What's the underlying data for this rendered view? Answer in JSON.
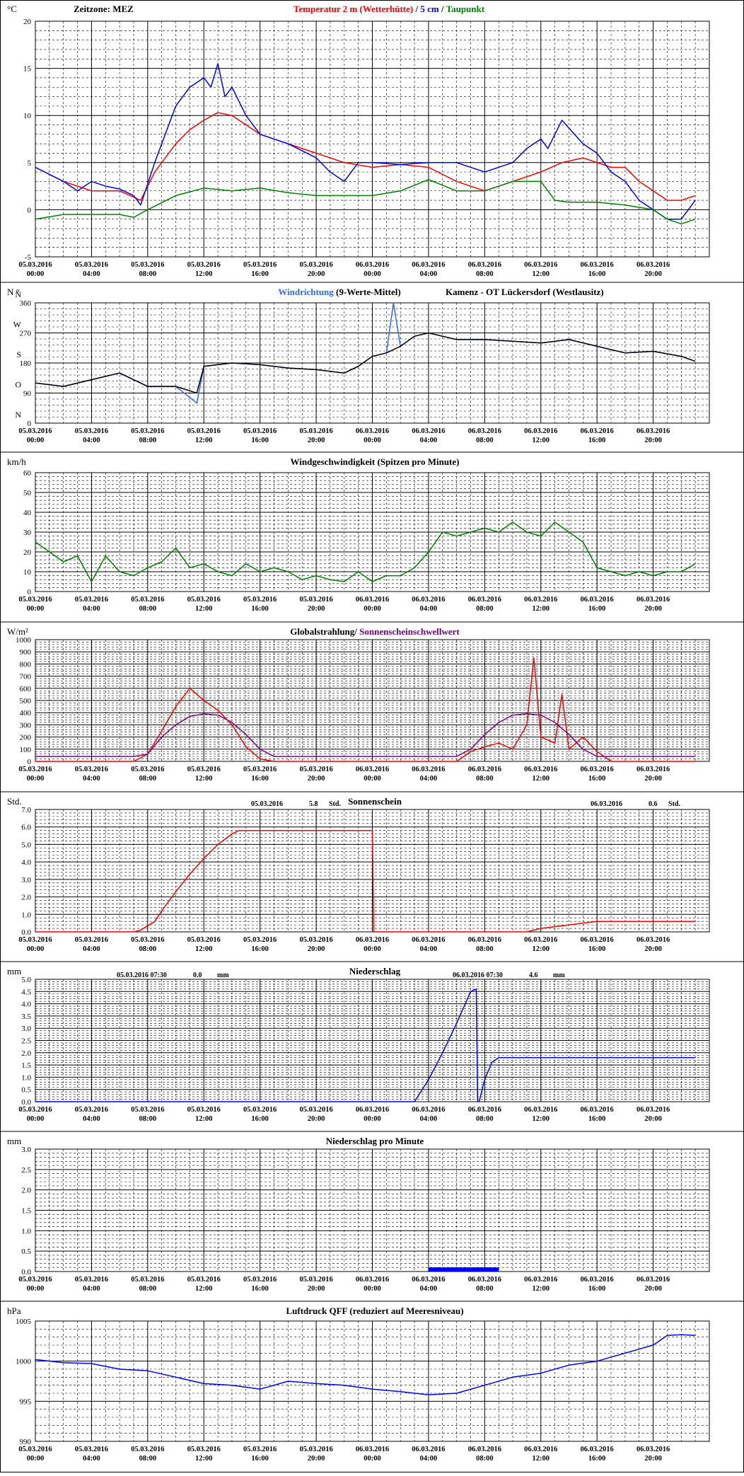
{
  "x_ticks": [
    [
      "05.03.2016",
      "00:00"
    ],
    [
      "05.03.2016",
      "04:00"
    ],
    [
      "05.03.2016",
      "08:00"
    ],
    [
      "05.03.2016",
      "12:00"
    ],
    [
      "05.03.2016",
      "16:00"
    ],
    [
      "05.03.2016",
      "20:00"
    ],
    [
      "06.03.2016",
      "00:00"
    ],
    [
      "06.03.2016",
      "04:00"
    ],
    [
      "06.03.2016",
      "08:00"
    ],
    [
      "06.03.2016",
      "12:00"
    ],
    [
      "06.03.2016",
      "16:00"
    ],
    [
      "06.03.2016",
      "20:00"
    ]
  ],
  "colors": {
    "red": "#ff0000",
    "blue": "#0000ff",
    "green": "#008000",
    "lightblue": "#3366ff",
    "black": "#000000",
    "purple": "#800080"
  },
  "chart_data": [
    {
      "id": "temp",
      "type": "line",
      "unit": "°C",
      "ylim": [
        -5,
        20
      ],
      "yticks": [
        -5,
        0,
        5,
        10,
        15,
        20
      ],
      "title_parts": [
        {
          "text": "Temperatur 2 m (Wetterhütte)",
          "color": "#ff0000"
        },
        {
          "text": "  /  ",
          "color": "#000000"
        },
        {
          "text": "5 cm",
          "color": "#0000ff"
        },
        {
          "text": " / ",
          "color": "#000000"
        },
        {
          "text": "Taupunkt",
          "color": "#008000"
        }
      ],
      "left_label": "Zeitzone: MEZ",
      "series": [
        {
          "name": "Temperatur 2 m (Wetterhütte)",
          "color": "#ff0000",
          "x": [
            0,
            2,
            4,
            6,
            7.5,
            8.5,
            10,
            11,
            12,
            13,
            14,
            16,
            18,
            20,
            22,
            24,
            26,
            28,
            30,
            32,
            34,
            36,
            37.5,
            39,
            40,
            41,
            42,
            43,
            44,
            45,
            46,
            47
          ],
          "y": [
            4.5,
            3,
            2,
            2,
            1,
            4,
            7,
            8.5,
            9.5,
            10.3,
            10,
            8,
            7,
            6,
            5,
            4.5,
            4.8,
            4.5,
            3,
            2,
            3,
            4,
            5,
            5.5,
            5,
            4.5,
            4.5,
            3,
            2,
            1,
            1,
            1.5
          ]
        },
        {
          "name": "5 cm",
          "color": "#0000ff",
          "x": [
            0,
            2,
            3,
            4,
            5,
            6,
            7,
            7.5,
            8.5,
            10,
            11,
            12,
            12.5,
            13,
            13.5,
            14,
            15,
            16,
            18,
            20,
            21,
            22,
            23,
            24,
            26,
            28,
            30,
            32,
            34,
            35,
            36,
            36.5,
            37.5,
            39,
            40,
            41,
            42,
            43,
            44,
            45,
            46,
            47
          ],
          "y": [
            4.5,
            3,
            2,
            3,
            2.5,
            2.2,
            1.5,
            0.5,
            5,
            11,
            13,
            14,
            13,
            15.5,
            12,
            13,
            10,
            8,
            7,
            5.5,
            4,
            3,
            5,
            5,
            4.8,
            5,
            5,
            4,
            5,
            6.5,
            7.5,
            6.5,
            9.5,
            7,
            6,
            4,
            3,
            1,
            0,
            -1,
            -1,
            1
          ]
        },
        {
          "name": "Taupunkt",
          "color": "#008000",
          "x": [
            0,
            2,
            4,
            6,
            7,
            8,
            10,
            12,
            14,
            16,
            18,
            20,
            22,
            24,
            26,
            28,
            30,
            32,
            34,
            36,
            37,
            38,
            40,
            42,
            44,
            45,
            46,
            47
          ],
          "y": [
            -1,
            -0.5,
            -0.5,
            -0.5,
            -0.8,
            0,
            1.5,
            2.3,
            2,
            2.3,
            1.8,
            1.5,
            1.5,
            1.5,
            2,
            3.2,
            2,
            2,
            3,
            3,
            1,
            0.8,
            0.8,
            0.5,
            0,
            -1,
            -1.5,
            -1
          ]
        }
      ]
    },
    {
      "id": "winddir",
      "type": "line",
      "unit": "N °",
      "ylim": [
        0,
        360
      ],
      "yticks": [
        0,
        90,
        180,
        270,
        360
      ],
      "ytick_labels": {
        "0": "0",
        "90": "90",
        "180": "180",
        "270": "270",
        "360": "360"
      },
      "compass_labels": [
        [
          "N",
          0
        ],
        [
          "O",
          90
        ],
        [
          "S",
          180
        ],
        [
          "W",
          270
        ],
        [
          "N",
          360
        ]
      ],
      "title_parts": [
        {
          "text": "Windrichtung",
          "color": "#3366ff"
        },
        {
          "text": " (9-Werte-Mittel)",
          "color": "#000000"
        }
      ],
      "right_title": "Kamenz - OT Lückersdorf (Westlausitz)",
      "series": [
        {
          "name": "Windrichtung",
          "color": "#3366ff",
          "x": [
            0,
            2,
            4,
            6,
            8,
            10,
            11.5,
            12,
            13,
            14,
            16,
            18,
            20,
            22,
            23,
            24,
            25,
            25.5,
            26,
            27,
            28,
            30,
            32,
            34,
            36,
            38,
            40,
            42,
            44,
            46,
            47
          ],
          "y": [
            120,
            110,
            130,
            150,
            110,
            110,
            60,
            170,
            175,
            180,
            175,
            165,
            160,
            150,
            170,
            200,
            210,
            360,
            230,
            260,
            270,
            250,
            250,
            245,
            240,
            250,
            230,
            210,
            215,
            200,
            185
          ]
        },
        {
          "name": "9-Werte-Mittel",
          "color": "#000000",
          "x": [
            0,
            2,
            4,
            6,
            8,
            10,
            11.5,
            12,
            13,
            14,
            16,
            18,
            20,
            22,
            23,
            24,
            25,
            26,
            27,
            28,
            30,
            32,
            34,
            36,
            38,
            40,
            42,
            44,
            46,
            47
          ],
          "y": [
            120,
            110,
            130,
            150,
            110,
            110,
            90,
            170,
            175,
            180,
            175,
            165,
            160,
            150,
            170,
            200,
            210,
            230,
            260,
            270,
            250,
            250,
            245,
            240,
            250,
            230,
            210,
            215,
            200,
            185
          ]
        }
      ]
    },
    {
      "id": "windspeed",
      "type": "line",
      "unit": "km/h",
      "ylim": [
        0,
        60
      ],
      "yticks": [
        0,
        10,
        20,
        30,
        40,
        50,
        60
      ],
      "title_parts": [
        {
          "text": "Windgeschwindigkeit (Spitzen pro Minute)",
          "color": "#000000"
        }
      ],
      "series": [
        {
          "name": "Windgeschwindigkeit",
          "color": "#008000",
          "x": [
            0,
            1,
            2,
            3,
            4,
            5,
            6,
            7,
            8,
            9,
            10,
            11,
            12,
            13,
            14,
            15,
            16,
            17,
            18,
            19,
            20,
            21,
            22,
            23,
            24,
            25,
            26,
            27,
            28,
            29,
            30,
            31,
            32,
            33,
            34,
            35,
            36,
            37,
            38,
            39,
            40,
            41,
            42,
            43,
            44,
            45,
            46,
            47
          ],
          "y": [
            25,
            20,
            15,
            18,
            5,
            18,
            10,
            8,
            12,
            15,
            22,
            12,
            14,
            10,
            8,
            14,
            10,
            12,
            10,
            6,
            8,
            6,
            5,
            10,
            5,
            8,
            8,
            12,
            20,
            30,
            28,
            30,
            32,
            30,
            35,
            30,
            28,
            35,
            30,
            25,
            12,
            10,
            8,
            10,
            8,
            10,
            10,
            14
          ]
        }
      ]
    },
    {
      "id": "radiation",
      "type": "line",
      "unit": "W/m²",
      "ylim": [
        0,
        1000
      ],
      "yticks": [
        0,
        100,
        200,
        300,
        400,
        500,
        600,
        700,
        800,
        900,
        1000
      ],
      "title_parts": [
        {
          "text": "Globalstrahlung/ ",
          "color": "#000000"
        },
        {
          "text": "Sonnenscheinschwellwert",
          "color": "#800080"
        }
      ],
      "series": [
        {
          "name": "Globalstrahlung",
          "color": "#ff0000",
          "x": [
            0,
            7,
            8,
            9,
            10,
            11,
            12,
            13,
            14,
            15,
            16,
            17,
            22,
            30,
            30.5,
            31,
            32,
            33,
            34,
            35,
            35.5,
            36,
            37,
            37.5,
            38,
            39,
            40,
            41,
            47
          ],
          "y": [
            0,
            0,
            60,
            250,
            450,
            600,
            500,
            420,
            300,
            120,
            20,
            0,
            0,
            0,
            40,
            80,
            120,
            150,
            100,
            300,
            850,
            200,
            150,
            550,
            100,
            200,
            80,
            0,
            0
          ]
        },
        {
          "name": "Sonnenscheinschwellwert",
          "color": "#800080",
          "x": [
            0,
            7,
            8,
            9,
            10,
            11,
            12,
            13,
            14,
            15,
            16,
            17,
            30,
            31,
            32,
            33,
            34,
            35,
            36,
            37,
            38,
            39,
            40,
            41,
            47
          ],
          "y": [
            40,
            40,
            60,
            200,
            300,
            370,
            390,
            380,
            320,
            220,
            100,
            40,
            40,
            100,
            220,
            320,
            380,
            390,
            380,
            320,
            220,
            100,
            40,
            40,
            40
          ]
        }
      ]
    },
    {
      "id": "sunshine",
      "type": "line",
      "unit": "Std.",
      "ylim": [
        0,
        7
      ],
      "yticks": [
        0,
        1,
        2,
        3,
        4,
        5,
        6,
        7
      ],
      "ydecimals": 1,
      "title_parts": [
        {
          "text": "Sonnenschein",
          "color": "#000000"
        }
      ],
      "annotations": [
        {
          "date": "05.03.2016",
          "value": "5.8",
          "unit": "Std."
        },
        {
          "date": "06.03.2016",
          "value": "0.6",
          "unit": "Std."
        }
      ],
      "series": [
        {
          "name": "Sonnenschein",
          "color": "#ff0000",
          "x": [
            0,
            7,
            7.5,
            8.5,
            9,
            10,
            11,
            12,
            13,
            14,
            14.5,
            23.9,
            24,
            24.1,
            35,
            35.5,
            36,
            37,
            38,
            39,
            40,
            47
          ],
          "y": [
            0,
            0,
            0.1,
            0.6,
            1.2,
            2.3,
            3.3,
            4.2,
            5,
            5.6,
            5.8,
            5.8,
            5.8,
            0,
            0,
            0.1,
            0.2,
            0.3,
            0.4,
            0.5,
            0.6,
            0.6
          ]
        }
      ]
    },
    {
      "id": "precip",
      "type": "line",
      "unit": "mm",
      "ylim": [
        0,
        5
      ],
      "yticks": [
        0,
        0.5,
        1,
        1.5,
        2,
        2.5,
        3,
        3.5,
        4,
        4.5,
        5
      ],
      "ydecimals": 1,
      "title_parts": [
        {
          "text": "Niederschlag",
          "color": "#000000"
        }
      ],
      "annotations": [
        {
          "date": "05.03.2016 07:30",
          "value": "0.0",
          "unit": "mm"
        },
        {
          "date": "06.03.2016 07:30",
          "value": "4.6",
          "unit": "mm"
        }
      ],
      "series": [
        {
          "name": "Niederschlag",
          "color": "#0000ff",
          "x": [
            0,
            27,
            28,
            29,
            30,
            31,
            31.4,
            31.5,
            31.6,
            32,
            32.5,
            33,
            47
          ],
          "y": [
            0,
            0,
            0.9,
            2,
            3.2,
            4.5,
            4.6,
            0,
            0,
            0.9,
            1.6,
            1.8,
            1.8
          ]
        }
      ]
    },
    {
      "id": "precipmin",
      "type": "bar",
      "unit": "mm",
      "ylim": [
        0,
        3
      ],
      "yticks": [
        0,
        0.5,
        1,
        1.5,
        2,
        2.5,
        3
      ],
      "ydecimals": 1,
      "title_parts": [
        {
          "text": "Niederschlag pro Minute",
          "color": "#000000"
        }
      ],
      "series": [
        {
          "name": "Niederschlag pro Minute",
          "color": "#0000ff",
          "x_start": 28,
          "x_end": 33,
          "value": 0.1
        }
      ]
    },
    {
      "id": "pressure",
      "type": "line",
      "unit": "hPa",
      "ylim": [
        990,
        1005
      ],
      "yticks": [
        990,
        995,
        1000,
        1005
      ],
      "title_parts": [
        {
          "text": "Luftdruck QFF (reduziert auf Meeresniveau)",
          "color": "#000000"
        }
      ],
      "series": [
        {
          "name": "Luftdruck QFF",
          "color": "#0000ff",
          "x": [
            0,
            2,
            4,
            6,
            8,
            10,
            12,
            14,
            16,
            18,
            20,
            22,
            24,
            26,
            28,
            30,
            32,
            34,
            36,
            38,
            40,
            42,
            44,
            45,
            46,
            47
          ],
          "y": [
            1000.2,
            999.8,
            999.7,
            999,
            998.8,
            998,
            997.2,
            997,
            996.5,
            997.5,
            997.2,
            997,
            996.5,
            996.2,
            995.8,
            996,
            997,
            998,
            998.5,
            999.5,
            1000,
            1001,
            1002,
            1003.2,
            1003.3,
            1003.2
          ]
        }
      ]
    }
  ]
}
